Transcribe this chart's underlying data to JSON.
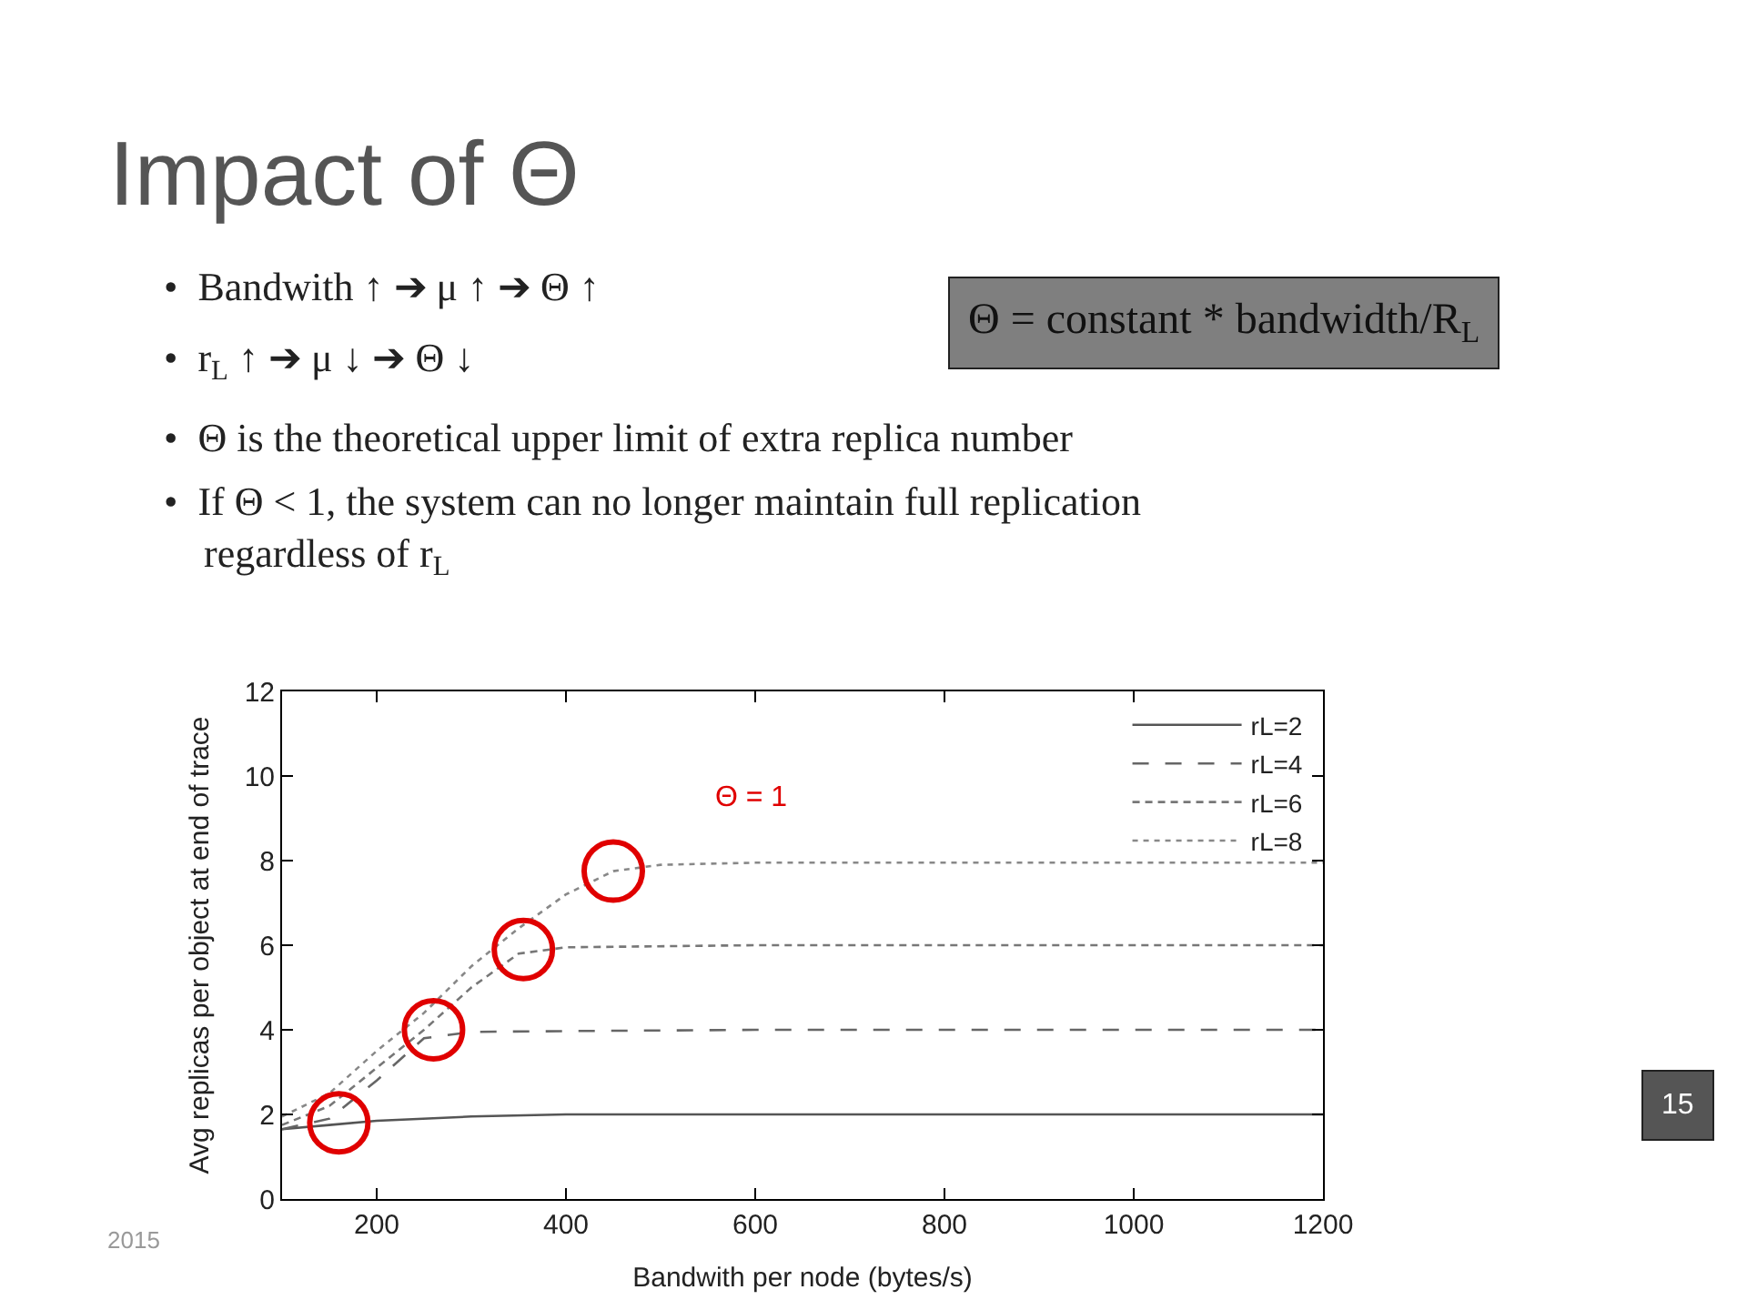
{
  "chart_data": {
    "type": "line",
    "title": "Impact of Θ",
    "xlabel": "Bandwith per node (bytes/s)",
    "ylabel": "Avg replicas per object at end of trace",
    "xlim": [
      100,
      1200
    ],
    "xticks": [
      200,
      400,
      600,
      800,
      1000,
      1200
    ],
    "ylim": [
      0,
      12
    ],
    "yticks": [
      0,
      2,
      4,
      6,
      8,
      10,
      12
    ],
    "legend": "top right",
    "marker": "none",
    "series": [
      {
        "name": "rL=2",
        "color": "#555555",
        "line_style": "solid",
        "x": [
          100,
          150,
          200,
          300,
          400,
          600,
          1200
        ],
        "values": [
          1.65,
          1.75,
          1.85,
          1.95,
          2.0,
          2.0,
          2.0
        ]
      },
      {
        "name": "rL=4",
        "color": "#666666",
        "line_style": "dashed",
        "x": [
          100,
          150,
          200,
          250,
          300,
          400,
          600,
          1200
        ],
        "values": [
          1.65,
          1.9,
          2.8,
          3.8,
          3.95,
          3.97,
          4.0,
          4.0
        ]
      },
      {
        "name": "rL=6",
        "color": "#777777",
        "line_style": "dashed",
        "x": [
          100,
          150,
          200,
          250,
          300,
          350,
          400,
          600,
          1200
        ],
        "values": [
          1.75,
          2.2,
          3.1,
          4.0,
          5.0,
          5.8,
          5.95,
          6.0,
          6.0
        ]
      },
      {
        "name": "rL=8",
        "color": "#888888",
        "line_style": "dotted",
        "x": [
          100,
          150,
          200,
          250,
          300,
          350,
          400,
          450,
          500,
          600,
          1200
        ],
        "values": [
          1.95,
          2.5,
          3.5,
          4.4,
          5.5,
          6.4,
          7.2,
          7.75,
          7.9,
          7.95,
          7.95
        ]
      },
      {
        "type": "scatter",
        "color": "#e00000",
        "marker": "circle",
        "x": [
          160,
          260,
          355,
          450
        ],
        "values": [
          1.8,
          4.0,
          5.9,
          7.75
        ]
      }
    ],
    "annotations": [
      "•  Bandwith ↑ ➔ μ ↑ ➔ Θ ↑",
      "•  r$_{L}$ ↑ ➔ μ ↓ ➔ Θ ↓",
      "•  Θ is the theoretical upper limit of extra replica number",
      "•  If Θ < 1, the system can no longer maintain full replication\n    regardless of r$_{L}$",
      "Θ = constant * bandwidth/R$_{L}$",
      "Θ = 1",
      "2015",
      "15"
    ]
  }
}
